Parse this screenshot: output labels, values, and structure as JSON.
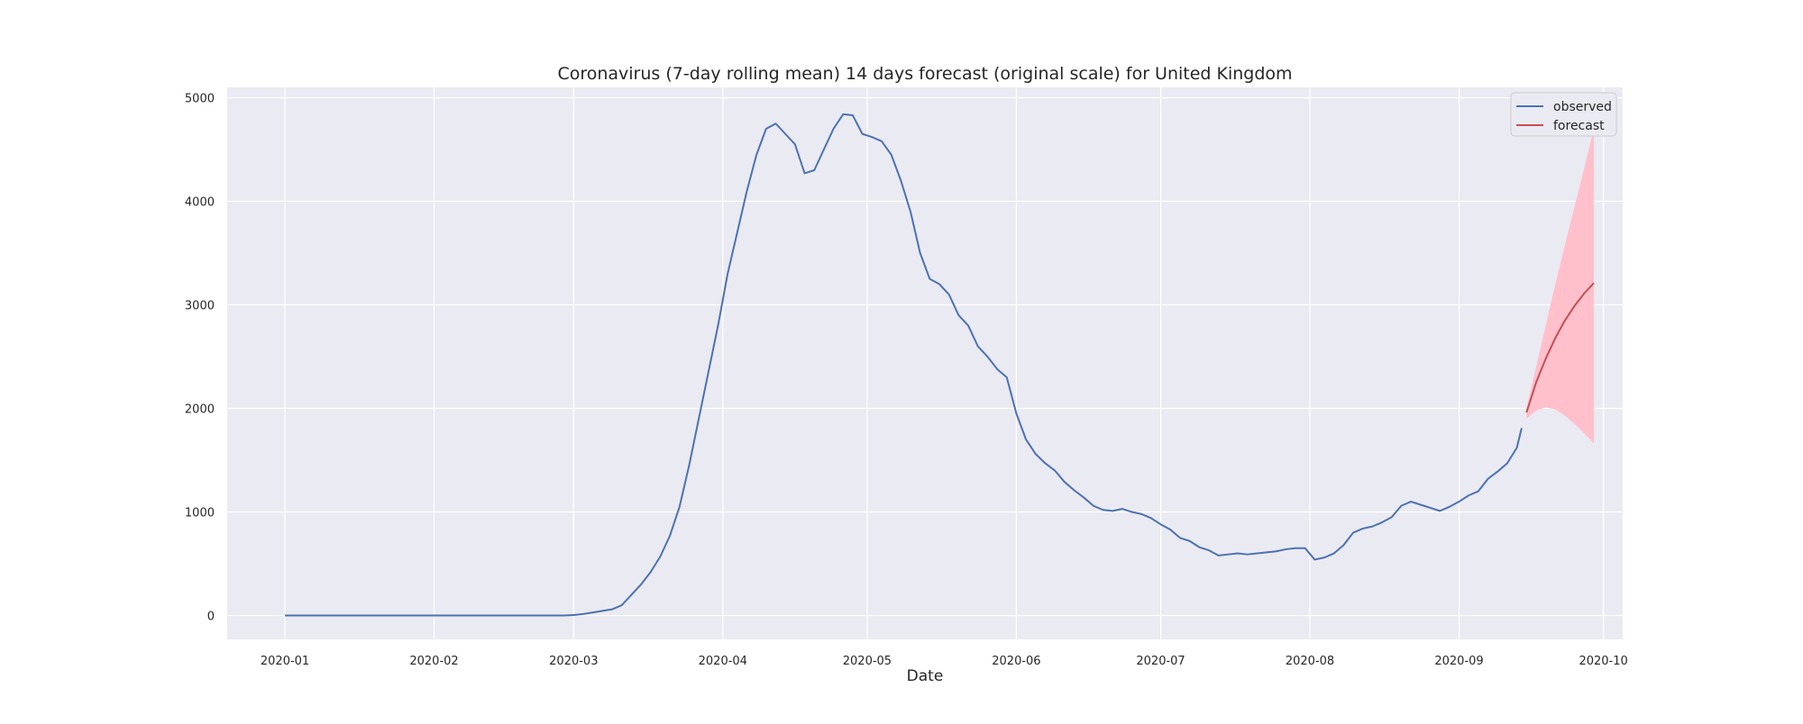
{
  "chart_data": {
    "type": "line",
    "title": "Coronavirus (7-day rolling mean) 14 days forecast (original scale) for United Kingdom",
    "xlabel": "Date",
    "ylabel": "",
    "x_type": "date",
    "xlim": [
      "2019-12-20",
      "2020-10-05"
    ],
    "ylim": [
      -230,
      5100
    ],
    "xticks": [
      "2020-01",
      "2020-02",
      "2020-03",
      "2020-04",
      "2020-05",
      "2020-06",
      "2020-07",
      "2020-08",
      "2020-09",
      "2020-10"
    ],
    "yticks": [
      0,
      1000,
      2000,
      3000,
      4000,
      5000
    ],
    "grid": true,
    "background": "#eaeaf2",
    "legend": {
      "location": "top-right",
      "entries": [
        "observed",
        "forecast"
      ]
    },
    "series": [
      {
        "name": "observed",
        "color": "#4c72b0",
        "points": [
          [
            "2020-01-01",
            0
          ],
          [
            "2020-02-01",
            0
          ],
          [
            "2020-02-28",
            0
          ],
          [
            "2020-03-01",
            5
          ],
          [
            "2020-03-03",
            15
          ],
          [
            "2020-03-05",
            30
          ],
          [
            "2020-03-07",
            45
          ],
          [
            "2020-03-09",
            60
          ],
          [
            "2020-03-11",
            100
          ],
          [
            "2020-03-13",
            200
          ],
          [
            "2020-03-15",
            300
          ],
          [
            "2020-03-17",
            420
          ],
          [
            "2020-03-19",
            570
          ],
          [
            "2020-03-21",
            770
          ],
          [
            "2020-03-23",
            1050
          ],
          [
            "2020-03-25",
            1450
          ],
          [
            "2020-03-27",
            1900
          ],
          [
            "2020-03-29",
            2350
          ],
          [
            "2020-03-31",
            2800
          ],
          [
            "2020-04-02",
            3300
          ],
          [
            "2020-04-04",
            3700
          ],
          [
            "2020-04-06",
            4100
          ],
          [
            "2020-04-08",
            4450
          ],
          [
            "2020-04-10",
            4700
          ],
          [
            "2020-04-12",
            4750
          ],
          [
            "2020-04-14",
            4650
          ],
          [
            "2020-04-16",
            4550
          ],
          [
            "2020-04-18",
            4270
          ],
          [
            "2020-04-20",
            4300
          ],
          [
            "2020-04-22",
            4500
          ],
          [
            "2020-04-24",
            4700
          ],
          [
            "2020-04-26",
            4840
          ],
          [
            "2020-04-28",
            4830
          ],
          [
            "2020-04-30",
            4650
          ],
          [
            "2020-05-02",
            4620
          ],
          [
            "2020-05-04",
            4580
          ],
          [
            "2020-05-06",
            4450
          ],
          [
            "2020-05-08",
            4200
          ],
          [
            "2020-05-10",
            3900
          ],
          [
            "2020-05-12",
            3500
          ],
          [
            "2020-05-14",
            3250
          ],
          [
            "2020-05-16",
            3200
          ],
          [
            "2020-05-18",
            3100
          ],
          [
            "2020-05-20",
            2900
          ],
          [
            "2020-05-22",
            2800
          ],
          [
            "2020-05-24",
            2600
          ],
          [
            "2020-05-26",
            2500
          ],
          [
            "2020-05-28",
            2380
          ],
          [
            "2020-05-30",
            2300
          ],
          [
            "2020-06-01",
            1950
          ],
          [
            "2020-06-03",
            1700
          ],
          [
            "2020-06-05",
            1560
          ],
          [
            "2020-06-07",
            1470
          ],
          [
            "2020-06-09",
            1400
          ],
          [
            "2020-06-11",
            1290
          ],
          [
            "2020-06-13",
            1210
          ],
          [
            "2020-06-15",
            1140
          ],
          [
            "2020-06-17",
            1060
          ],
          [
            "2020-06-19",
            1020
          ],
          [
            "2020-06-21",
            1010
          ],
          [
            "2020-06-23",
            1030
          ],
          [
            "2020-06-25",
            1000
          ],
          [
            "2020-06-27",
            980
          ],
          [
            "2020-06-29",
            940
          ],
          [
            "2020-07-01",
            880
          ],
          [
            "2020-07-03",
            830
          ],
          [
            "2020-07-05",
            750
          ],
          [
            "2020-07-07",
            720
          ],
          [
            "2020-07-09",
            660
          ],
          [
            "2020-07-11",
            630
          ],
          [
            "2020-07-13",
            580
          ],
          [
            "2020-07-15",
            590
          ],
          [
            "2020-07-17",
            600
          ],
          [
            "2020-07-19",
            590
          ],
          [
            "2020-07-21",
            600
          ],
          [
            "2020-07-23",
            610
          ],
          [
            "2020-07-25",
            620
          ],
          [
            "2020-07-27",
            640
          ],
          [
            "2020-07-29",
            650
          ],
          [
            "2020-07-31",
            650
          ],
          [
            "2020-08-02",
            540
          ],
          [
            "2020-08-04",
            560
          ],
          [
            "2020-08-06",
            600
          ],
          [
            "2020-08-08",
            680
          ],
          [
            "2020-08-10",
            800
          ],
          [
            "2020-08-12",
            840
          ],
          [
            "2020-08-14",
            860
          ],
          [
            "2020-08-16",
            900
          ],
          [
            "2020-08-18",
            950
          ],
          [
            "2020-08-20",
            1060
          ],
          [
            "2020-08-22",
            1100
          ],
          [
            "2020-08-24",
            1070
          ],
          [
            "2020-08-26",
            1040
          ],
          [
            "2020-08-28",
            1010
          ],
          [
            "2020-08-30",
            1050
          ],
          [
            "2020-09-01",
            1100
          ],
          [
            "2020-09-03",
            1160
          ],
          [
            "2020-09-05",
            1200
          ],
          [
            "2020-09-07",
            1320
          ],
          [
            "2020-09-09",
            1390
          ],
          [
            "2020-09-11",
            1470
          ],
          [
            "2020-09-13",
            1620
          ],
          [
            "2020-09-14",
            1810
          ]
        ]
      },
      {
        "name": "forecast",
        "color": "#c44e52",
        "points": [
          [
            "2020-09-15",
            1960
          ],
          [
            "2020-09-17",
            2250
          ],
          [
            "2020-09-19",
            2480
          ],
          [
            "2020-09-21",
            2680
          ],
          [
            "2020-09-23",
            2850
          ],
          [
            "2020-09-25",
            2990
          ],
          [
            "2020-09-27",
            3110
          ],
          [
            "2020-09-29",
            3210
          ]
        ]
      }
    ],
    "confidence_band": {
      "color": "#ffc0cb",
      "upper": [
        [
          "2020-09-15",
          2000
        ],
        [
          "2020-09-17",
          2400
        ],
        [
          "2020-09-19",
          2800
        ],
        [
          "2020-09-21",
          3200
        ],
        [
          "2020-09-23",
          3580
        ],
        [
          "2020-09-25",
          3950
        ],
        [
          "2020-09-27",
          4320
        ],
        [
          "2020-09-29",
          4700
        ]
      ],
      "lower": [
        [
          "2020-09-15",
          1900
        ],
        [
          "2020-09-17",
          1980
        ],
        [
          "2020-09-19",
          2010
        ],
        [
          "2020-09-21",
          1990
        ],
        [
          "2020-09-23",
          1930
        ],
        [
          "2020-09-25",
          1850
        ],
        [
          "2020-09-27",
          1760
        ],
        [
          "2020-09-29",
          1660
        ]
      ]
    }
  }
}
